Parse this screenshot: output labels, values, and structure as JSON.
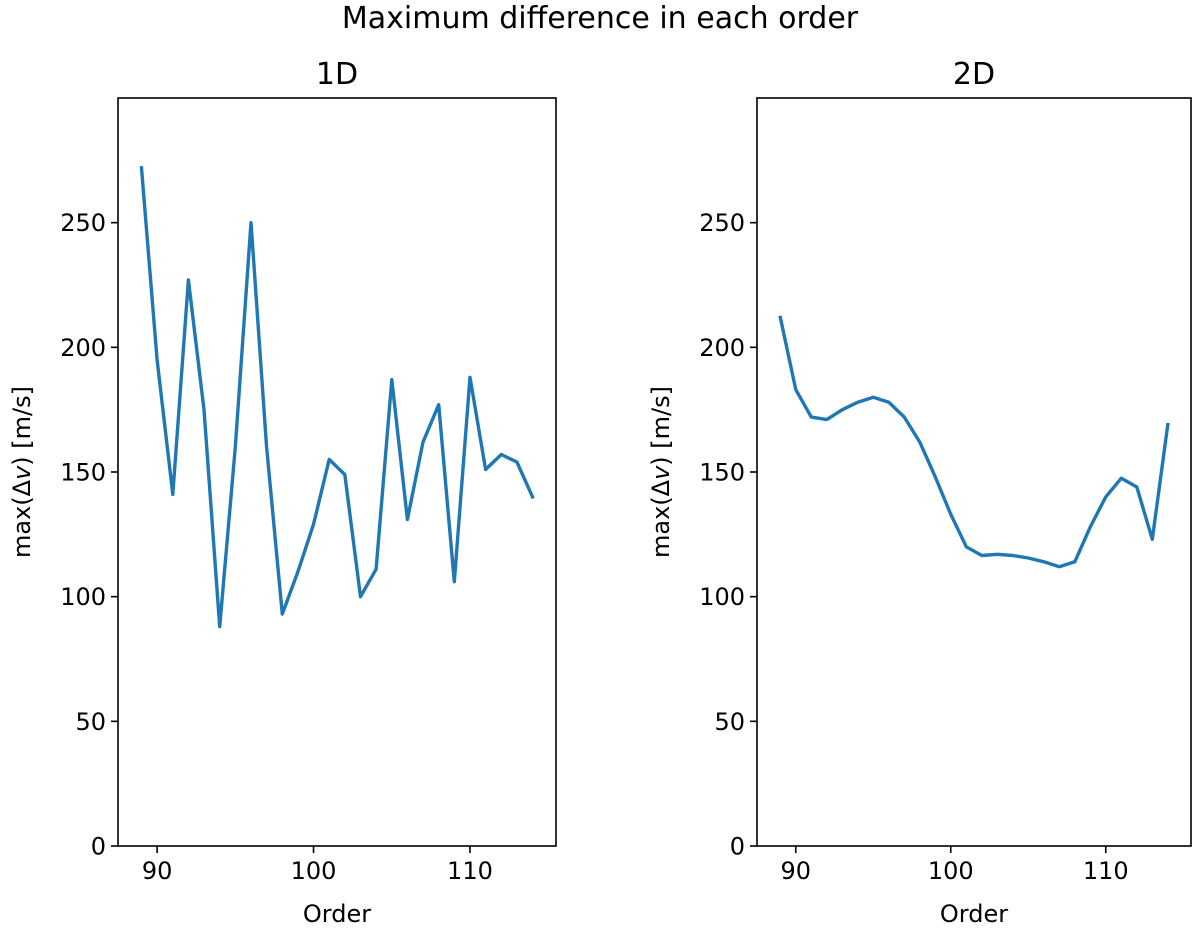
{
  "figure": {
    "title": "Maximum difference in each order"
  },
  "style": {
    "series_color": "#1f77b4",
    "axes_color": "#000000",
    "background": "#ffffff"
  },
  "chart_data": [
    {
      "type": "line",
      "title": "1D",
      "xlabel": "Order",
      "ylabel_parts": [
        "max(",
        "Δv",
        ") [m/s]"
      ],
      "xlim": [
        87.5,
        115.5
      ],
      "ylim": [
        0,
        300
      ],
      "xticks": [
        90,
        100,
        110
      ],
      "yticks": [
        0,
        50,
        100,
        150,
        200,
        250
      ],
      "grid": false,
      "legend": "none",
      "x": [
        89,
        90,
        91,
        92,
        93,
        94,
        95,
        96,
        97,
        98,
        99,
        100,
        101,
        102,
        103,
        104,
        105,
        106,
        107,
        108,
        109,
        110,
        111,
        112,
        113,
        114
      ],
      "y": [
        272,
        195,
        141,
        227,
        175,
        88,
        160,
        250,
        160,
        93,
        110,
        129,
        155,
        149,
        100,
        111,
        187,
        131,
        162,
        177,
        106,
        188,
        151,
        157,
        154,
        140
      ]
    },
    {
      "type": "line",
      "title": "2D",
      "xlabel": "Order",
      "ylabel_parts": [
        "max(",
        "Δv",
        ") [m/s]"
      ],
      "xlim": [
        87.5,
        115.5
      ],
      "ylim": [
        0,
        300
      ],
      "xticks": [
        90,
        100,
        110
      ],
      "yticks": [
        0,
        50,
        100,
        150,
        200,
        250
      ],
      "grid": false,
      "legend": "none",
      "x": [
        89,
        90,
        91,
        92,
        93,
        94,
        95,
        96,
        97,
        98,
        99,
        100,
        101,
        102,
        103,
        104,
        105,
        106,
        107,
        108,
        109,
        110,
        111,
        112,
        113,
        114
      ],
      "y": [
        212,
        183,
        172,
        171,
        175,
        178,
        180,
        178,
        172,
        162,
        148,
        133,
        120,
        116.5,
        117,
        116.5,
        115.5,
        114,
        112,
        114,
        128,
        140,
        147.5,
        144,
        123,
        169
      ]
    }
  ]
}
